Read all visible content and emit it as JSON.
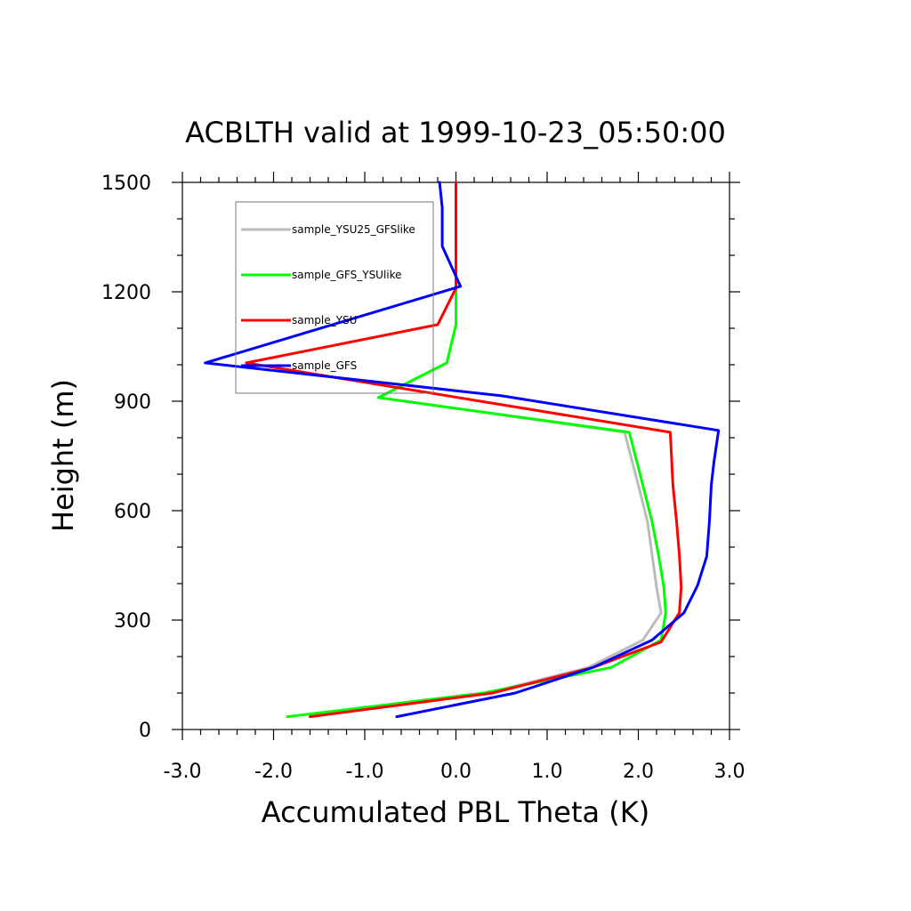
{
  "chart_data": {
    "type": "line",
    "title": "ACBLTH valid at 1999-10-23_05:50:00",
    "xlabel": "Accumulated PBL Theta (K)",
    "ylabel": "Height (m)",
    "xlim": [
      -3.0,
      3.0
    ],
    "ylim": [
      0,
      1500
    ],
    "xticks": [
      -3.0,
      -2.0,
      -1.0,
      0.0,
      1.0,
      2.0,
      3.0
    ],
    "xtick_labels": [
      "-3.0",
      "-2.0",
      "-1.0",
      "0.0",
      "1.0",
      "2.0",
      "3.0"
    ],
    "yticks": [
      0,
      300,
      600,
      900,
      1200,
      1500
    ],
    "ytick_labels": [
      "0",
      "300",
      "600",
      "900",
      "1200",
      "1500"
    ],
    "grid": false,
    "legend_position": "top-left",
    "series": [
      {
        "name": "sample_YSU25_GFSlike",
        "color": "#bbbbbb",
        "points": [
          [
            -1.6,
            35
          ],
          [
            0.35,
            100
          ],
          [
            1.45,
            170
          ],
          [
            2.05,
            245
          ],
          [
            2.25,
            320
          ],
          [
            2.2,
            390
          ],
          [
            2.15,
            480
          ],
          [
            2.1,
            570
          ],
          [
            2.0,
            670
          ],
          [
            1.85,
            815
          ],
          [
            -0.85,
            910
          ],
          [
            -0.1,
            1005
          ],
          [
            0.0,
            1110
          ],
          [
            0.0,
            1210
          ],
          [
            0.0,
            1500
          ]
        ]
      },
      {
        "name": "sample_GFS_YSUlike",
        "color": "#00ff00",
        "points": [
          [
            -1.85,
            35
          ],
          [
            0.3,
            100
          ],
          [
            1.7,
            170
          ],
          [
            2.25,
            245
          ],
          [
            2.3,
            320
          ],
          [
            2.28,
            390
          ],
          [
            2.22,
            480
          ],
          [
            2.15,
            570
          ],
          [
            2.05,
            670
          ],
          [
            1.9,
            815
          ],
          [
            -0.85,
            910
          ],
          [
            -0.1,
            1005
          ],
          [
            0.0,
            1110
          ],
          [
            0.0,
            1210
          ],
          [
            0.0,
            1500
          ]
        ]
      },
      {
        "name": "sample_YSU",
        "color": "#ff0000",
        "points": [
          [
            -1.6,
            35
          ],
          [
            0.4,
            100
          ],
          [
            1.5,
            170
          ],
          [
            2.25,
            240
          ],
          [
            2.45,
            320
          ],
          [
            2.47,
            390
          ],
          [
            2.45,
            480
          ],
          [
            2.42,
            570
          ],
          [
            2.38,
            670
          ],
          [
            2.35,
            815
          ],
          [
            -2.3,
            1005
          ],
          [
            -0.2,
            1110
          ],
          [
            0.0,
            1210
          ],
          [
            0.0,
            1500
          ]
        ]
      },
      {
        "name": "sample_GFS",
        "color": "#0000ff",
        "points": [
          [
            -0.65,
            35
          ],
          [
            0.65,
            100
          ],
          [
            1.5,
            170
          ],
          [
            2.15,
            245
          ],
          [
            2.5,
            320
          ],
          [
            2.65,
            395
          ],
          [
            2.75,
            475
          ],
          [
            2.78,
            570
          ],
          [
            2.8,
            670
          ],
          [
            2.83,
            735
          ],
          [
            2.88,
            820
          ],
          [
            0.5,
            915
          ],
          [
            -2.75,
            1005
          ],
          [
            0.05,
            1215
          ],
          [
            -0.15,
            1325
          ],
          [
            -0.15,
            1430
          ],
          [
            -0.18,
            1500
          ]
        ]
      }
    ]
  }
}
